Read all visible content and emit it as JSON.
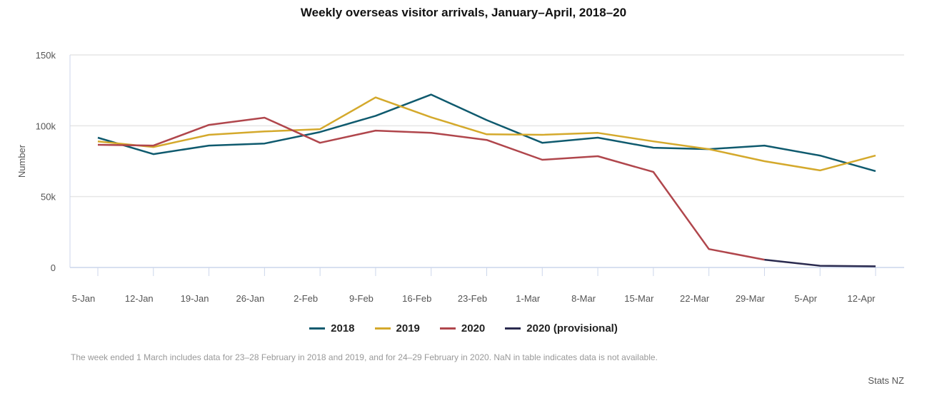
{
  "chart_data": {
    "type": "line",
    "title": "Weekly overseas visitor arrivals, January–April, 2018–20",
    "xlabel": "",
    "ylabel": "Number",
    "ylim": [
      0,
      150000
    ],
    "yticks": [
      0,
      50000,
      100000,
      150000
    ],
    "ytick_labels": [
      "0",
      "50k",
      "100k",
      "150k"
    ],
    "grid": true,
    "legend_position": "bottom-center",
    "categories": [
      "5-Jan",
      "12-Jan",
      "19-Jan",
      "26-Jan",
      "2-Feb",
      "9-Feb",
      "16-Feb",
      "23-Feb",
      "1-Mar",
      "8-Mar",
      "15-Mar",
      "22-Mar",
      "29-Mar",
      "5-Apr",
      "12-Apr"
    ],
    "series": [
      {
        "name": "2018",
        "color": "#0f5a6e",
        "values": [
          91600,
          80000,
          86000,
          87500,
          95600,
          107000,
          122000,
          104000,
          88000,
          91600,
          84500,
          83500,
          86000,
          79000,
          68000
        ]
      },
      {
        "name": "2019",
        "color": "#d4a92c",
        "values": [
          89000,
          85000,
          93600,
          96000,
          97600,
          120000,
          106000,
          94000,
          93600,
          95000,
          89000,
          83500,
          75000,
          68500,
          79000
        ]
      },
      {
        "name": "2020",
        "color": "#b0464c",
        "values": [
          86600,
          86000,
          100600,
          105700,
          88000,
          96600,
          95000,
          90000,
          76000,
          78500,
          67400,
          13000,
          5500,
          null,
          null
        ]
      },
      {
        "name": "2020 (provisional)",
        "color": "#2a2a4f",
        "values": [
          null,
          null,
          null,
          null,
          null,
          null,
          null,
          null,
          null,
          null,
          null,
          null,
          5500,
          1200,
          800
        ]
      }
    ]
  },
  "header": {
    "title": "Weekly overseas visitor arrivals, January–April, 2018–20"
  },
  "legend": [
    {
      "label": "2018",
      "color": "#0f5a6e"
    },
    {
      "label": "2019",
      "color": "#d4a92c"
    },
    {
      "label": "2020",
      "color": "#b0464c"
    },
    {
      "label": "2020 (provisional)",
      "color": "#2a2a4f"
    }
  ],
  "footer": {
    "note": "The week ended 1 March includes data for 23–28 February in 2018 and 2019, and for 24–29 February in 2020. NaN in table indicates data is not available.",
    "source": "Stats NZ"
  }
}
